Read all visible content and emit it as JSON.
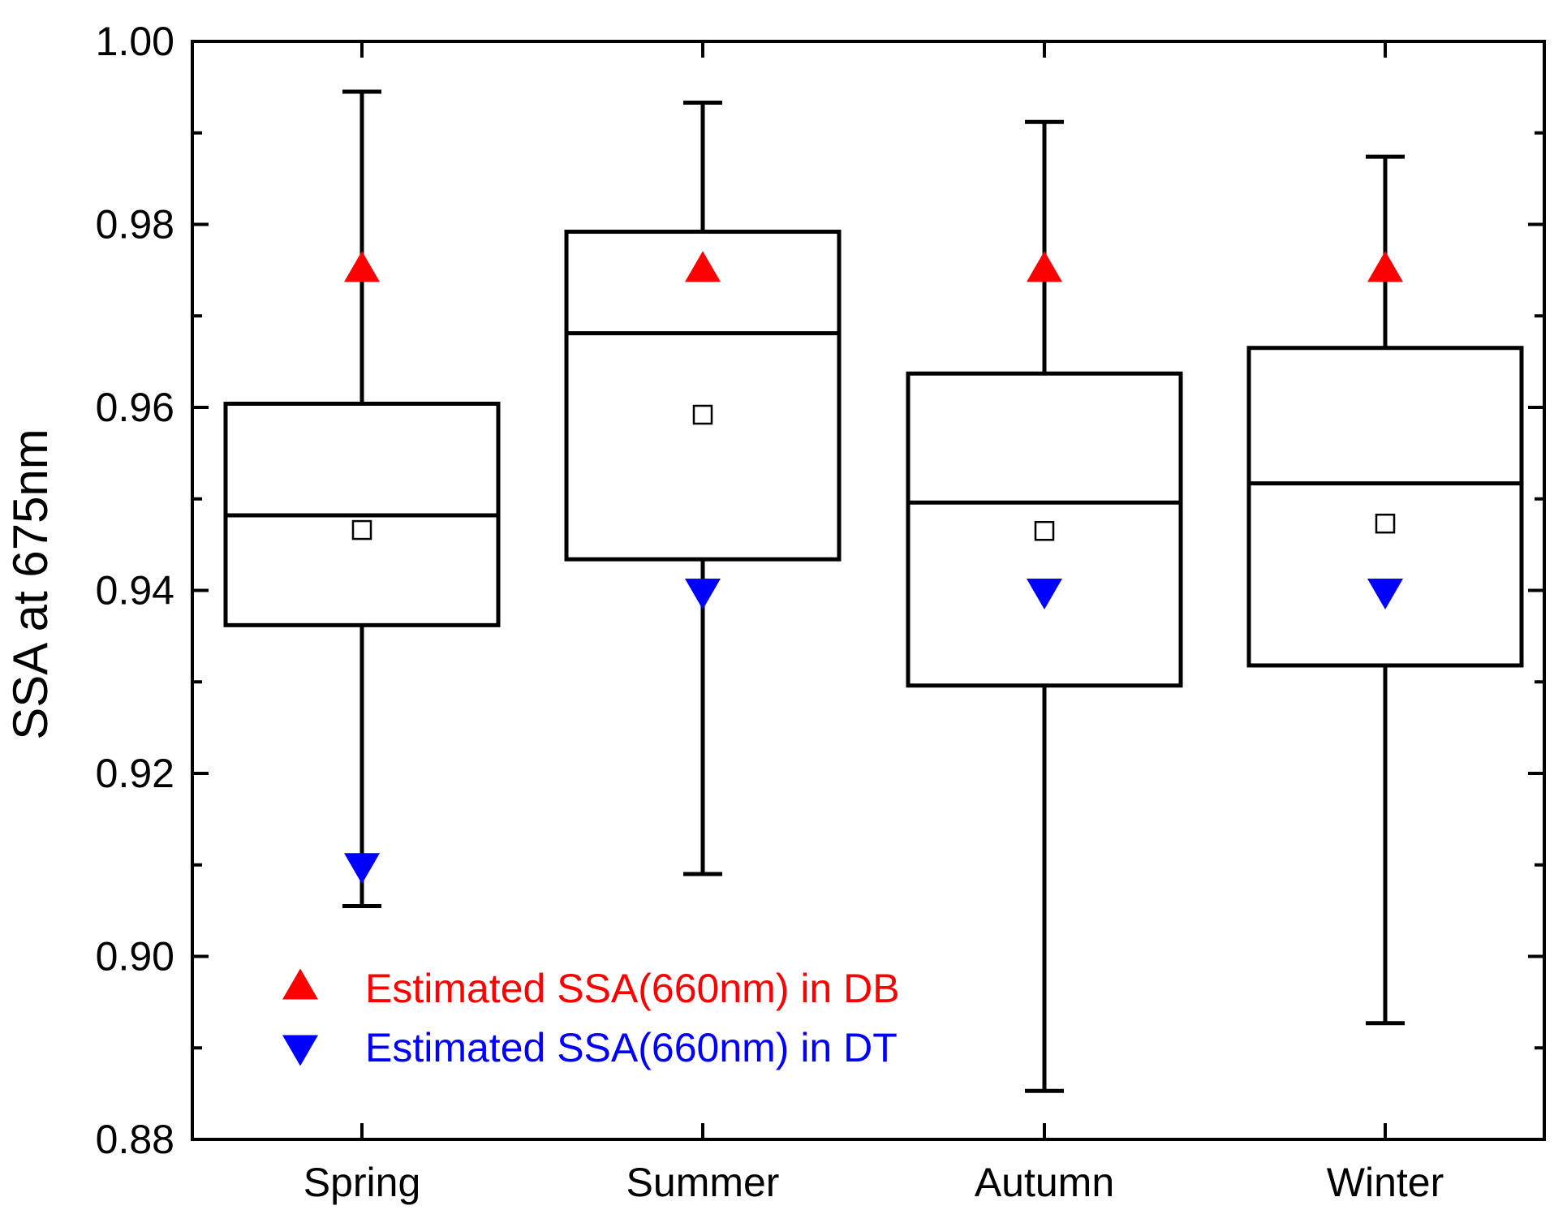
{
  "chart_data": {
    "type": "box",
    "title": "",
    "xlabel": "",
    "ylabel": "SSA at 675nm",
    "ylim": [
      0.88,
      1.0
    ],
    "yticks": [
      "0.88",
      "0.90",
      "0.92",
      "0.94",
      "0.96",
      "0.98",
      "1.00"
    ],
    "categories": [
      "Spring",
      "Summer",
      "Autumn",
      "Winter"
    ],
    "boxes": [
      {
        "category": "Spring",
        "whisker_low": 0.9055,
        "q1": 0.9362,
        "median": 0.9482,
        "q3": 0.9604,
        "whisker_high": 0.9945,
        "mean": 0.9466
      },
      {
        "category": "Summer",
        "whisker_low": 0.909,
        "q1": 0.9434,
        "median": 0.9681,
        "q3": 0.9792,
        "whisker_high": 0.9933,
        "mean": 0.9592
      },
      {
        "category": "Autumn",
        "whisker_low": 0.8853,
        "q1": 0.9296,
        "median": 0.9496,
        "q3": 0.9637,
        "whisker_high": 0.9912,
        "mean": 0.9465
      },
      {
        "category": "Winter",
        "whisker_low": 0.8927,
        "q1": 0.9318,
        "median": 0.9517,
        "q3": 0.9665,
        "whisker_high": 0.9874,
        "mean": 0.9473
      }
    ],
    "series": [
      {
        "name": "Estimated SSA(660nm) in DB",
        "marker": "triangle-up",
        "color": "#ff0000",
        "values": [
          0.975,
          0.975,
          0.975,
          0.975
        ]
      },
      {
        "name": "Estimated SSA(660nm) in DT",
        "marker": "triangle-down",
        "color": "#0000ff",
        "values": [
          0.91,
          0.94,
          0.94,
          0.94
        ]
      }
    ],
    "legend": {
      "position": "bottom-left",
      "entries": [
        {
          "label": "Estimated SSA(660nm) in DB",
          "marker": "triangle-up",
          "color": "#ff0000"
        },
        {
          "label": "Estimated SSA(660nm) in DT",
          "marker": "triangle-down",
          "color": "#0000ff"
        }
      ]
    },
    "colors": {
      "axis": "#000000",
      "box": "#000000",
      "db": "#ff0000",
      "dt": "#0000ff"
    }
  }
}
